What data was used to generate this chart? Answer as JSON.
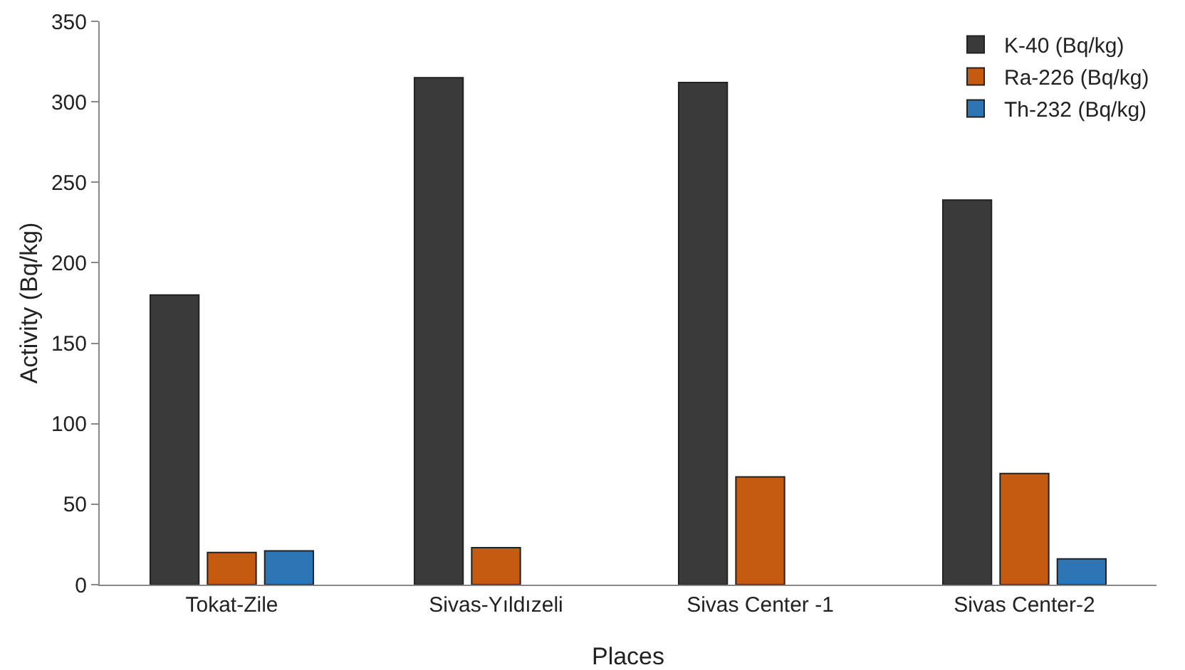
{
  "chart_data": {
    "type": "bar",
    "xlabel": "Places",
    "ylabel": "Activity (Bq/kg)",
    "categories": [
      "Tokat-Zile",
      "Sivas-Yıldızeli",
      "Sivas Center -1",
      "Sivas Center-2"
    ],
    "series": [
      {
        "name": "K-40 (Bq/kg)",
        "color": "#3a3a3a",
        "values": [
          180,
          315,
          312,
          239
        ]
      },
      {
        "name": "Ra-226 (Bq/kg)",
        "color": "#c55a11",
        "values": [
          20,
          23,
          67,
          69
        ]
      },
      {
        "name": "Th-232 (Bq/kg)",
        "color": "#2e75b6",
        "values": [
          21,
          null,
          null,
          16
        ]
      }
    ],
    "ylim": [
      0,
      350
    ],
    "yticks": [
      0,
      50,
      100,
      150,
      200,
      250,
      300,
      350
    ],
    "grid": false,
    "legend": "top right"
  }
}
